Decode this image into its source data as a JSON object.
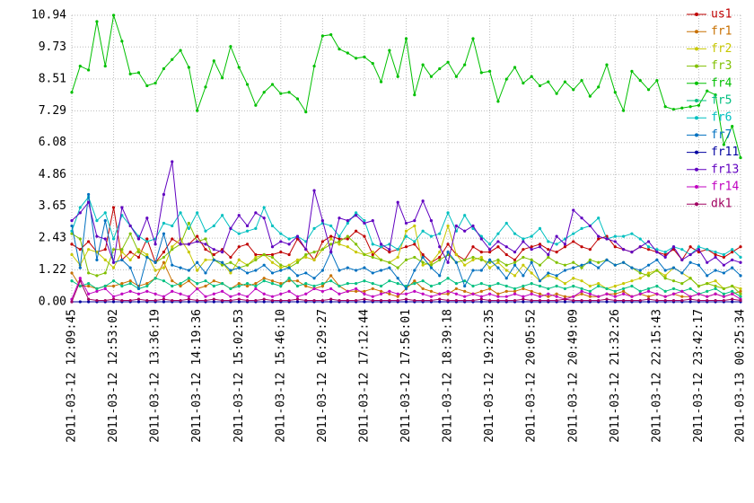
{
  "chart_data": {
    "type": "line",
    "categories": [
      "2011-03-12 12:09:45",
      null,
      null,
      null,
      null,
      "2011-03-12 12:53:02",
      null,
      null,
      null,
      null,
      "2011-03-12 13:36:19",
      null,
      null,
      null,
      null,
      "2011-03-12 14:19:36",
      null,
      null,
      null,
      null,
      "2011-03-12 15:02:53",
      null,
      null,
      null,
      null,
      "2011-03-12 15:46:10",
      null,
      null,
      null,
      null,
      "2011-03-12 16:29:27",
      null,
      null,
      null,
      null,
      "2011-03-12 17:12:44",
      null,
      null,
      null,
      null,
      "2011-03-12 17:56:01",
      null,
      null,
      null,
      null,
      "2011-03-12 18:39:18",
      null,
      null,
      null,
      null,
      "2011-03-12 19:22:35",
      null,
      null,
      null,
      null,
      "2011-03-12 20:05:52",
      null,
      null,
      null,
      null,
      "2011-03-12 20:49:09",
      null,
      null,
      null,
      null,
      "2011-03-12 21:32:26",
      null,
      null,
      null,
      null,
      "2011-03-12 22:15:43",
      null,
      null,
      null,
      null,
      "2011-03-12 23:42:17",
      null,
      null,
      null,
      null,
      "2011-03-13 00:25:34"
    ],
    "ylim": [
      0,
      10.94
    ],
    "yticks": [
      {
        "value": 0,
        "label": "0.00"
      },
      1.22,
      2.43,
      3.65,
      4.86,
      6.08,
      7.29,
      8.51,
      9.73,
      10.94
    ],
    "grid": true,
    "legend": "right",
    "series": [
      {
        "name": "us1",
        "color": "#c00000",
        "values": [
          2.2,
          2.0,
          2.3,
          1.9,
          2.0,
          3.6,
          1.6,
          1.9,
          1.7,
          2.4,
          1.5,
          1.9,
          2.4,
          2.2,
          2.2,
          2.5,
          2.0,
          1.8,
          2.0,
          1.7,
          2.1,
          2.2,
          1.8,
          1.8,
          1.8,
          1.9,
          1.8,
          2.4,
          2.0,
          1.6,
          2.3,
          2.5,
          2.4,
          2.4,
          2.7,
          2.5,
          1.8,
          2.1,
          1.9,
          2.0,
          2.1,
          2.2,
          1.8,
          1.5,
          1.7,
          2.2,
          1.8,
          1.6,
          2.1,
          1.9,
          1.9,
          2.1,
          1.8,
          1.6,
          2.0,
          2.1,
          2.2,
          2.0,
          1.9,
          2.1,
          2.3,
          2.1,
          2.0,
          2.4,
          2.5,
          2.1,
          2.0,
          1.9,
          2.1,
          2.0,
          1.9,
          1.8,
          2.0,
          1.6,
          2.1,
          1.9,
          2.0,
          1.8,
          1.7,
          1.9,
          2.1
        ]
      },
      {
        "name": "fr1",
        "color": "#c87000",
        "values": [
          1.1,
          0.6,
          0.6,
          0.5,
          0.6,
          0.6,
          0.7,
          0.8,
          0.6,
          0.7,
          0.9,
          1.5,
          0.8,
          0.6,
          0.8,
          0.5,
          0.6,
          0.8,
          0.7,
          0.5,
          0.7,
          0.6,
          0.7,
          0.9,
          0.8,
          0.7,
          0.8,
          0.8,
          0.6,
          0.5,
          0.6,
          1.0,
          0.6,
          0.4,
          0.4,
          0.4,
          0.5,
          0.4,
          0.3,
          0.2,
          0.5,
          0.8,
          0.5,
          0.4,
          0.3,
          0.3,
          0.5,
          0.4,
          0.3,
          0.4,
          0.5,
          0.3,
          0.4,
          0.4,
          0.5,
          0.4,
          0.3,
          0.2,
          0.3,
          0.2,
          0.2,
          0.3,
          0.2,
          0.2,
          0.3,
          0.3,
          0.4,
          0.2,
          0.3,
          0.2,
          0.3,
          0.2,
          0.3,
          0.2,
          0.2,
          0.3,
          0.2,
          0.3,
          0.2,
          0.3,
          0.4
        ]
      },
      {
        "name": "fr2",
        "color": "#c8c800",
        "values": [
          1.8,
          1.4,
          2.0,
          1.9,
          1.6,
          1.3,
          1.9,
          1.6,
          2.0,
          1.8,
          1.2,
          1.3,
          2.1,
          2.4,
          1.9,
          1.2,
          1.6,
          1.6,
          1.5,
          1.1,
          1.6,
          1.4,
          1.7,
          1.8,
          1.5,
          1.3,
          1.4,
          1.6,
          1.7,
          1.6,
          2.0,
          2.4,
          2.2,
          2.1,
          1.9,
          1.8,
          1.9,
          1.6,
          1.5,
          1.7,
          2.7,
          2.9,
          1.4,
          1.5,
          1.9,
          2.9,
          1.8,
          1.4,
          1.6,
          1.7,
          1.3,
          1.5,
          1.2,
          1.0,
          1.4,
          1.1,
          0.8,
          1.0,
          0.9,
          0.7,
          0.9,
          0.8,
          0.6,
          0.7,
          0.5,
          0.6,
          0.7,
          0.8,
          0.9,
          1.1,
          1.2,
          1.0,
          1.3,
          1.1,
          0.9,
          0.6,
          0.7,
          0.8,
          0.5,
          0.6,
          0.5
        ]
      },
      {
        "name": "fr3",
        "color": "#80c000",
        "values": [
          2.6,
          2.4,
          1.1,
          1.0,
          1.1,
          2.0,
          2.0,
          2.6,
          1.9,
          1.7,
          1.5,
          1.7,
          2.0,
          2.2,
          3.0,
          2.3,
          2.4,
          1.6,
          1.4,
          1.5,
          1.3,
          1.4,
          1.6,
          1.8,
          1.7,
          1.4,
          1.3,
          1.5,
          1.8,
          1.9,
          2.0,
          2.2,
          2.3,
          2.5,
          2.2,
          1.8,
          1.7,
          1.6,
          1.5,
          1.3,
          1.6,
          1.7,
          1.5,
          1.4,
          1.6,
          1.8,
          1.5,
          1.6,
          1.7,
          1.6,
          1.5,
          1.6,
          1.4,
          1.5,
          1.7,
          1.6,
          1.4,
          1.7,
          1.5,
          1.4,
          1.5,
          1.3,
          1.6,
          1.5,
          1.6,
          1.4,
          1.5,
          1.3,
          1.1,
          1.0,
          1.2,
          0.9,
          0.8,
          0.7,
          0.9,
          0.6,
          0.7,
          0.6,
          0.5,
          0.6,
          0.3
        ]
      },
      {
        "name": "fr4",
        "color": "#00c000",
        "values": [
          8.0,
          9.0,
          8.85,
          10.7,
          9.0,
          10.94,
          9.95,
          8.7,
          8.75,
          8.25,
          8.35,
          8.9,
          9.25,
          9.6,
          8.95,
          7.3,
          8.2,
          9.2,
          8.55,
          9.75,
          8.95,
          8.3,
          7.5,
          8.0,
          8.3,
          7.95,
          8.0,
          7.75,
          7.25,
          9.0,
          10.15,
          10.2,
          9.65,
          9.5,
          9.3,
          9.35,
          9.1,
          8.4,
          9.6,
          8.6,
          10.05,
          7.9,
          9.05,
          8.6,
          8.9,
          9.15,
          8.6,
          9.05,
          10.05,
          8.75,
          8.8,
          7.65,
          8.5,
          8.95,
          8.35,
          8.6,
          8.25,
          8.4,
          7.95,
          8.4,
          8.1,
          8.45,
          7.85,
          8.2,
          9.05,
          8.0,
          7.3,
          8.8,
          8.45,
          8.1,
          8.45,
          7.45,
          7.35,
          7.4,
          7.45,
          7.5,
          8.05,
          7.9,
          6.0,
          6.7,
          5.5
        ]
      },
      {
        "name": "fr5",
        "color": "#00c080",
        "values": [
          0.8,
          0.6,
          0.7,
          0.5,
          0.6,
          0.8,
          0.6,
          0.7,
          0.5,
          0.6,
          0.9,
          0.8,
          0.6,
          0.7,
          0.9,
          0.7,
          0.8,
          0.6,
          0.7,
          0.5,
          0.6,
          0.7,
          0.6,
          0.8,
          0.7,
          0.6,
          0.9,
          0.6,
          0.7,
          0.6,
          0.7,
          0.8,
          0.6,
          0.7,
          0.7,
          0.8,
          0.7,
          0.6,
          0.8,
          0.7,
          0.6,
          0.7,
          0.8,
          0.6,
          0.7,
          0.9,
          0.7,
          0.8,
          0.6,
          0.7,
          0.6,
          0.7,
          0.6,
          0.5,
          0.6,
          0.7,
          0.6,
          0.5,
          0.6,
          0.5,
          0.6,
          0.5,
          0.4,
          0.6,
          0.5,
          0.4,
          0.5,
          0.6,
          0.4,
          0.5,
          0.6,
          0.4,
          0.5,
          0.4,
          0.5,
          0.3,
          0.4,
          0.5,
          0.3,
          0.4,
          0.2
        ]
      },
      {
        "name": "fr6",
        "color": "#00c0c0",
        "values": [
          2.7,
          3.6,
          4.0,
          3.1,
          3.4,
          2.4,
          3.3,
          2.9,
          2.5,
          2.3,
          2.4,
          3.0,
          2.9,
          3.4,
          2.8,
          3.4,
          2.7,
          2.9,
          3.3,
          2.8,
          2.6,
          2.7,
          2.8,
          3.6,
          2.9,
          2.6,
          2.4,
          2.5,
          2.3,
          2.8,
          3.0,
          2.9,
          2.5,
          3.0,
          3.4,
          3.1,
          2.2,
          2.1,
          2.2,
          2.0,
          2.5,
          2.3,
          2.7,
          2.5,
          2.6,
          3.4,
          2.7,
          3.3,
          2.8,
          2.5,
          2.2,
          2.6,
          3.0,
          2.6,
          2.4,
          2.5,
          2.8,
          2.3,
          2.2,
          2.4,
          2.6,
          2.8,
          2.9,
          3.2,
          2.4,
          2.5,
          2.5,
          2.6,
          2.4,
          2.1,
          2.0,
          1.9,
          2.1,
          2.0,
          1.8,
          2.1,
          2.0,
          1.9,
          1.8,
          2.0,
          1.7
        ]
      },
      {
        "name": "fr7",
        "color": "#0070c0",
        "values": [
          2.9,
          1.3,
          4.1,
          1.6,
          3.1,
          1.5,
          1.6,
          1.3,
          0.5,
          1.7,
          1.5,
          2.6,
          1.4,
          1.3,
          1.2,
          1.5,
          1.1,
          1.6,
          1.5,
          1.2,
          1.3,
          1.1,
          1.2,
          1.4,
          1.1,
          1.2,
          1.3,
          1.0,
          1.1,
          0.9,
          1.2,
          1.9,
          1.2,
          1.3,
          1.2,
          1.3,
          1.1,
          1.2,
          1.3,
          0.9,
          0.5,
          1.2,
          1.7,
          1.3,
          1.0,
          1.9,
          1.5,
          0.6,
          1.2,
          1.2,
          1.6,
          1.3,
          0.9,
          1.4,
          1.0,
          1.5,
          0.8,
          1.1,
          1.0,
          1.2,
          1.3,
          1.4,
          1.5,
          1.3,
          1.6,
          1.4,
          1.5,
          1.3,
          1.2,
          1.4,
          1.6,
          1.2,
          1.3,
          1.1,
          1.5,
          1.4,
          1.0,
          1.2,
          1.1,
          1.3,
          1.0
        ]
      },
      {
        "name": "fr11",
        "color": "#0000a0",
        "values": [
          0,
          0,
          0,
          0,
          0,
          0,
          0,
          0,
          0,
          0,
          0,
          0,
          0,
          0,
          0,
          0,
          0,
          0,
          0,
          0,
          0,
          0,
          0,
          0,
          0,
          0,
          0,
          0,
          0,
          0,
          0,
          0,
          0,
          0,
          0,
          0,
          0,
          0,
          0,
          0,
          0,
          0,
          0,
          0,
          0,
          0,
          0,
          0,
          0,
          0,
          0,
          0,
          0,
          0,
          0,
          0,
          0,
          0,
          0,
          0,
          0,
          0,
          0,
          0,
          0,
          0,
          0,
          0,
          0,
          0,
          0,
          0,
          0,
          0,
          0,
          0,
          0,
          0,
          0,
          0,
          0
        ]
      },
      {
        "name": "fr13",
        "color": "#6000c0",
        "values": [
          3.1,
          3.4,
          3.8,
          2.5,
          2.4,
          1.5,
          3.6,
          2.9,
          2.4,
          3.2,
          2.2,
          4.1,
          5.35,
          2.2,
          2.2,
          2.3,
          2.2,
          2.0,
          1.9,
          2.8,
          3.3,
          2.9,
          3.4,
          3.2,
          2.1,
          2.3,
          2.2,
          2.5,
          2.0,
          4.25,
          3.1,
          1.9,
          3.2,
          3.1,
          3.3,
          3.0,
          3.1,
          2.2,
          2.0,
          3.8,
          3.0,
          3.1,
          3.85,
          3.1,
          2.1,
          1.5,
          2.9,
          2.7,
          2.9,
          2.4,
          2.0,
          2.3,
          2.1,
          1.9,
          2.3,
          2.0,
          2.1,
          1.8,
          2.5,
          2.2,
          3.5,
          3.2,
          2.9,
          2.5,
          2.4,
          2.3,
          2.0,
          1.9,
          2.1,
          2.3,
          1.9,
          1.7,
          2.1,
          1.6,
          1.8,
          2.0,
          1.5,
          1.7,
          1.4,
          1.6,
          1.5
        ]
      },
      {
        "name": "fr14",
        "color": "#c000c0",
        "values": [
          0.1,
          0.9,
          0.3,
          0.4,
          0.5,
          0.2,
          0.3,
          0.4,
          0.3,
          0.4,
          0.3,
          0.2,
          0.4,
          0.3,
          0.2,
          0.5,
          0.2,
          0.3,
          0.4,
          0.2,
          0.3,
          0.2,
          0.5,
          0.3,
          0.2,
          0.3,
          0.4,
          0.2,
          0.3,
          0.5,
          0.4,
          0.5,
          0.3,
          0.4,
          0.5,
          0.3,
          0.2,
          0.3,
          0.4,
          0.3,
          0.3,
          0.4,
          0.3,
          0.2,
          0.3,
          0.4,
          0.3,
          0.2,
          0.3,
          0.2,
          0.3,
          0.2,
          0.2,
          0.3,
          0.2,
          0.3,
          0.2,
          0.3,
          0.2,
          0.1,
          0.2,
          0.4,
          0.3,
          0.2,
          0.3,
          0.2,
          0.3,
          0.2,
          0.3,
          0.4,
          0.3,
          0.2,
          0.3,
          0.4,
          0.2,
          0.3,
          0.2,
          0.3,
          0.2,
          0.3,
          0.1
        ]
      },
      {
        "name": "dk1",
        "color": "#a00060",
        "values": [
          0.0,
          0.8,
          0.1,
          0.05,
          0.05,
          0.1,
          0.05,
          0.05,
          0.1,
          0.05,
          0.05,
          0.1,
          0.05,
          0.05,
          0.1,
          0.05,
          0.05,
          0.1,
          0.05,
          0.05,
          0.1,
          0.05,
          0.05,
          0.1,
          0.05,
          0.05,
          0.05,
          0.1,
          0.05,
          0.05,
          0.05,
          0.1,
          0.05,
          0.05,
          0.05,
          0.1,
          0.05,
          0.05,
          0.05,
          0.05,
          0.1,
          0.05,
          0.05,
          0.05,
          0.1,
          0.05,
          0.05,
          0.05,
          0.05,
          0.1,
          0.05,
          0.05,
          0.05,
          0.05,
          0.1,
          0.05,
          0.05,
          0.05,
          0.05,
          0.1,
          0.05,
          0.05,
          0.05,
          0.05,
          0.1,
          0.05,
          0.05,
          0.05,
          0.05,
          0.1,
          0.05,
          0.05,
          0.05,
          0.05,
          0.1,
          0.05,
          0.05,
          0.05,
          0.05,
          0.1,
          0.05
        ]
      }
    ]
  }
}
